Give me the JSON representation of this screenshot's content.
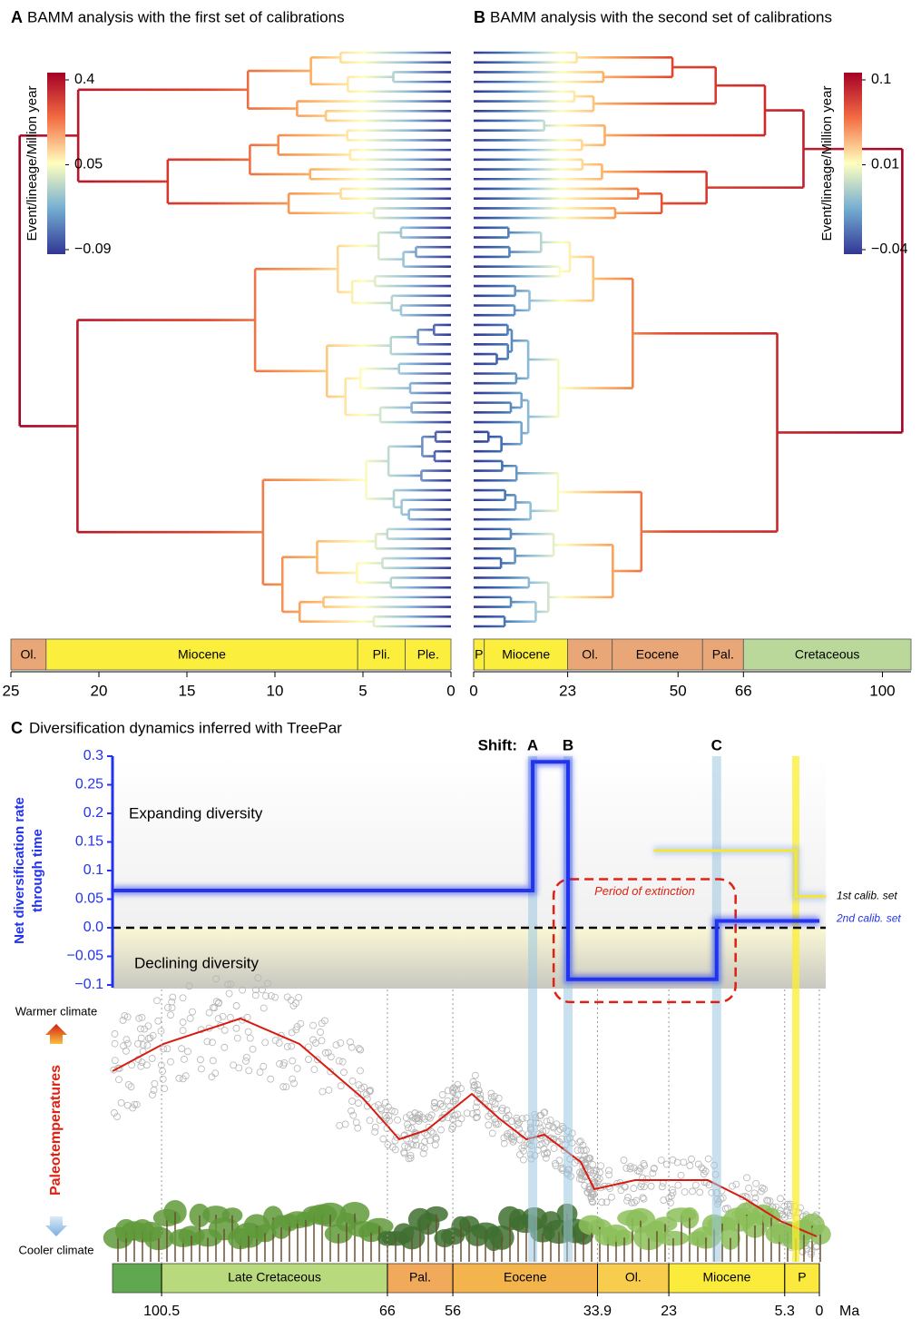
{
  "chart_data": [
    {
      "type": "tree",
      "label": "A",
      "title": "BAMM analysis with the first set of calibrations",
      "colorbar": {
        "label": "Event/lineage/Million year",
        "ticks": [
          0.4,
          0.05,
          {
            "value": -0.09,
            "label": "−0.09"
          }
        ]
      },
      "xlim": [
        25,
        0
      ],
      "xticks": [
        25,
        20,
        15,
        10,
        5,
        0
      ],
      "periods": [
        {
          "name": "Ol.",
          "start": 25,
          "end": 23,
          "color": "#e9a677"
        },
        {
          "name": "Miocene",
          "start": 23,
          "end": 5.3,
          "color": "#fbee3c"
        },
        {
          "name": "Pli.",
          "start": 5.3,
          "end": 2.6,
          "color": "#fbee3c"
        },
        {
          "name": "Ple.",
          "start": 2.6,
          "end": 0,
          "color": "#fbee3c"
        }
      ]
    },
    {
      "type": "tree",
      "label": "B",
      "title": "BAMM analysis with the second set of calibrations",
      "colorbar": {
        "label": "Event/lineage/Million year",
        "ticks": [
          0.1,
          0.01,
          {
            "value": -0.04,
            "label": "−0.04"
          }
        ]
      },
      "xlim": [
        0,
        107
      ],
      "xticks": [
        0,
        23,
        50,
        66,
        100
      ],
      "periods": [
        {
          "name": "P",
          "start": 0,
          "end": 2.6,
          "color": "#fbee3c"
        },
        {
          "name": "Miocene",
          "start": 2.6,
          "end": 23,
          "color": "#fbee3c"
        },
        {
          "name": "Ol.",
          "start": 23,
          "end": 33.9,
          "color": "#e9a677"
        },
        {
          "name": "Eocene",
          "start": 33.9,
          "end": 56,
          "color": "#e9a677"
        },
        {
          "name": "Pal.",
          "start": 56,
          "end": 66,
          "color": "#e9a677"
        },
        {
          "name": "Cretaceous",
          "start": 66,
          "end": 107,
          "color": "#b9d89a"
        }
      ]
    },
    {
      "type": "line",
      "label": "C",
      "title": "Diversification dynamics inferred with TreePar",
      "ylabel": [
        "Net diversification rate",
        "through time"
      ],
      "xlim": [
        108,
        0
      ],
      "xticks": [
        100.5,
        66,
        56,
        33.9,
        23,
        5.3,
        0
      ],
      "xunit": "Ma",
      "ylim": [
        -0.1,
        0.3
      ],
      "yticks": [
        0.3,
        0.25,
        0.2,
        0.15,
        0.1,
        0.05,
        {
          "value": 0,
          "label": "0.0"
        },
        {
          "value": -0.05,
          "label": "−0.05"
        },
        {
          "value": -0.1,
          "label": "−0.1"
        }
      ],
      "hline": 0,
      "regions": [
        {
          "label": "Expanding diversity"
        },
        {
          "label": "Declining diversity"
        }
      ],
      "shift_label": "Shift:",
      "shifts": [
        {
          "label": "A",
          "x": 43.8
        },
        {
          "label": "B",
          "x": 38.4
        },
        {
          "label": "C",
          "x": 15.7
        }
      ],
      "highlight_x": 3.6,
      "extinction_box": {
        "label": "Period of extinction",
        "xlim": [
          40.6,
          12.8
        ],
        "ylim": [
          -0.13,
          0.085
        ]
      },
      "series": [
        {
          "name": "1st calib. set",
          "color": "#f5e632",
          "x": [
            25.3,
            3.6,
            3.6,
            -1
          ],
          "values": [
            0.135,
            0.135,
            0.055,
            0.055
          ]
        },
        {
          "name": "2nd calib. set",
          "color": "#2233ee",
          "x": [
            108,
            43.8,
            43.8,
            38.4,
            38.4,
            15.7,
            15.7,
            0
          ],
          "values": [
            0.065,
            0.065,
            0.29,
            0.29,
            -0.09,
            -0.09,
            0.012,
            0.012
          ]
        }
      ],
      "climate": {
        "label": "Paleotemperatures",
        "top": "Warmer climate",
        "bottom": "Cooler climate"
      },
      "periods": [
        {
          "name": null,
          "start": 108,
          "end": 100.5,
          "color": "#5fa850"
        },
        {
          "name": "Late Cretaceous",
          "start": 100.5,
          "end": 66,
          "color": "#b8da7c"
        },
        {
          "name": "Pal.",
          "start": 66,
          "end": 56,
          "color": "#f1a95c"
        },
        {
          "name": "Eocene",
          "start": 56,
          "end": 33.9,
          "color": "#f4b44c"
        },
        {
          "name": "Ol.",
          "start": 33.9,
          "end": 23,
          "color": "#f8cd4e"
        },
        {
          "name": "Miocene",
          "start": 23,
          "end": 5.3,
          "color": "#fbec3c"
        },
        {
          "name": "P",
          "start": 5.3,
          "end": 0,
          "color": "#fce93e"
        }
      ]
    }
  ]
}
